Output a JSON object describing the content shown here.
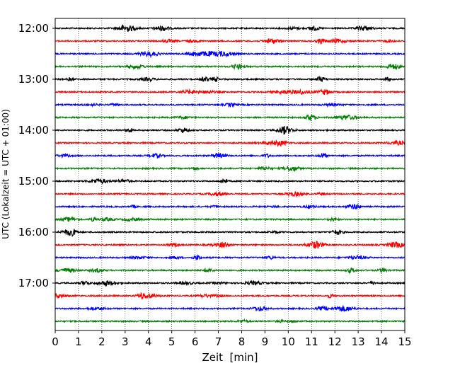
{
  "chart_data": {
    "type": "line",
    "title": "",
    "xlabel": "Zeit  [min]",
    "ylabel": "UTC (Lokalzeit = UTC + 01:00)",
    "xlim": [
      0,
      15
    ],
    "x_ticks": [
      "0",
      "1",
      "2",
      "3",
      "4",
      "5",
      "6",
      "7",
      "8",
      "9",
      "10",
      "11",
      "12",
      "13",
      "14",
      "15"
    ],
    "y_tick_labels": [
      "12:00",
      "13:00",
      "14:00",
      "15:00",
      "16:00",
      "17:00"
    ],
    "grid": "vertical dotted lines at each minute",
    "trace_interval_min": 15,
    "trace_colors": [
      "#000000",
      "#ff0000",
      "#0000ff",
      "#008000"
    ],
    "series": [
      {
        "start": "12:00",
        "color": "#000000"
      },
      {
        "start": "12:15",
        "color": "#ff0000"
      },
      {
        "start": "12:30",
        "color": "#0000ff"
      },
      {
        "start": "12:45",
        "color": "#008000"
      },
      {
        "start": "13:00",
        "color": "#000000"
      },
      {
        "start": "13:15",
        "color": "#ff0000"
      },
      {
        "start": "13:30",
        "color": "#0000ff"
      },
      {
        "start": "13:45",
        "color": "#008000"
      },
      {
        "start": "14:00",
        "color": "#000000"
      },
      {
        "start": "14:15",
        "color": "#ff0000"
      },
      {
        "start": "14:30",
        "color": "#0000ff"
      },
      {
        "start": "14:45",
        "color": "#008000"
      },
      {
        "start": "15:00",
        "color": "#000000"
      },
      {
        "start": "15:15",
        "color": "#ff0000"
      },
      {
        "start": "15:30",
        "color": "#0000ff"
      },
      {
        "start": "15:45",
        "color": "#008000"
      },
      {
        "start": "16:00",
        "color": "#000000"
      },
      {
        "start": "16:15",
        "color": "#ff0000"
      },
      {
        "start": "16:30",
        "color": "#0000ff"
      },
      {
        "start": "16:45",
        "color": "#008000"
      },
      {
        "start": "17:00",
        "color": "#000000"
      },
      {
        "start": "17:15",
        "color": "#ff0000"
      },
      {
        "start": "17:30",
        "color": "#0000ff"
      },
      {
        "start": "17:45",
        "color": "#008000"
      }
    ]
  }
}
